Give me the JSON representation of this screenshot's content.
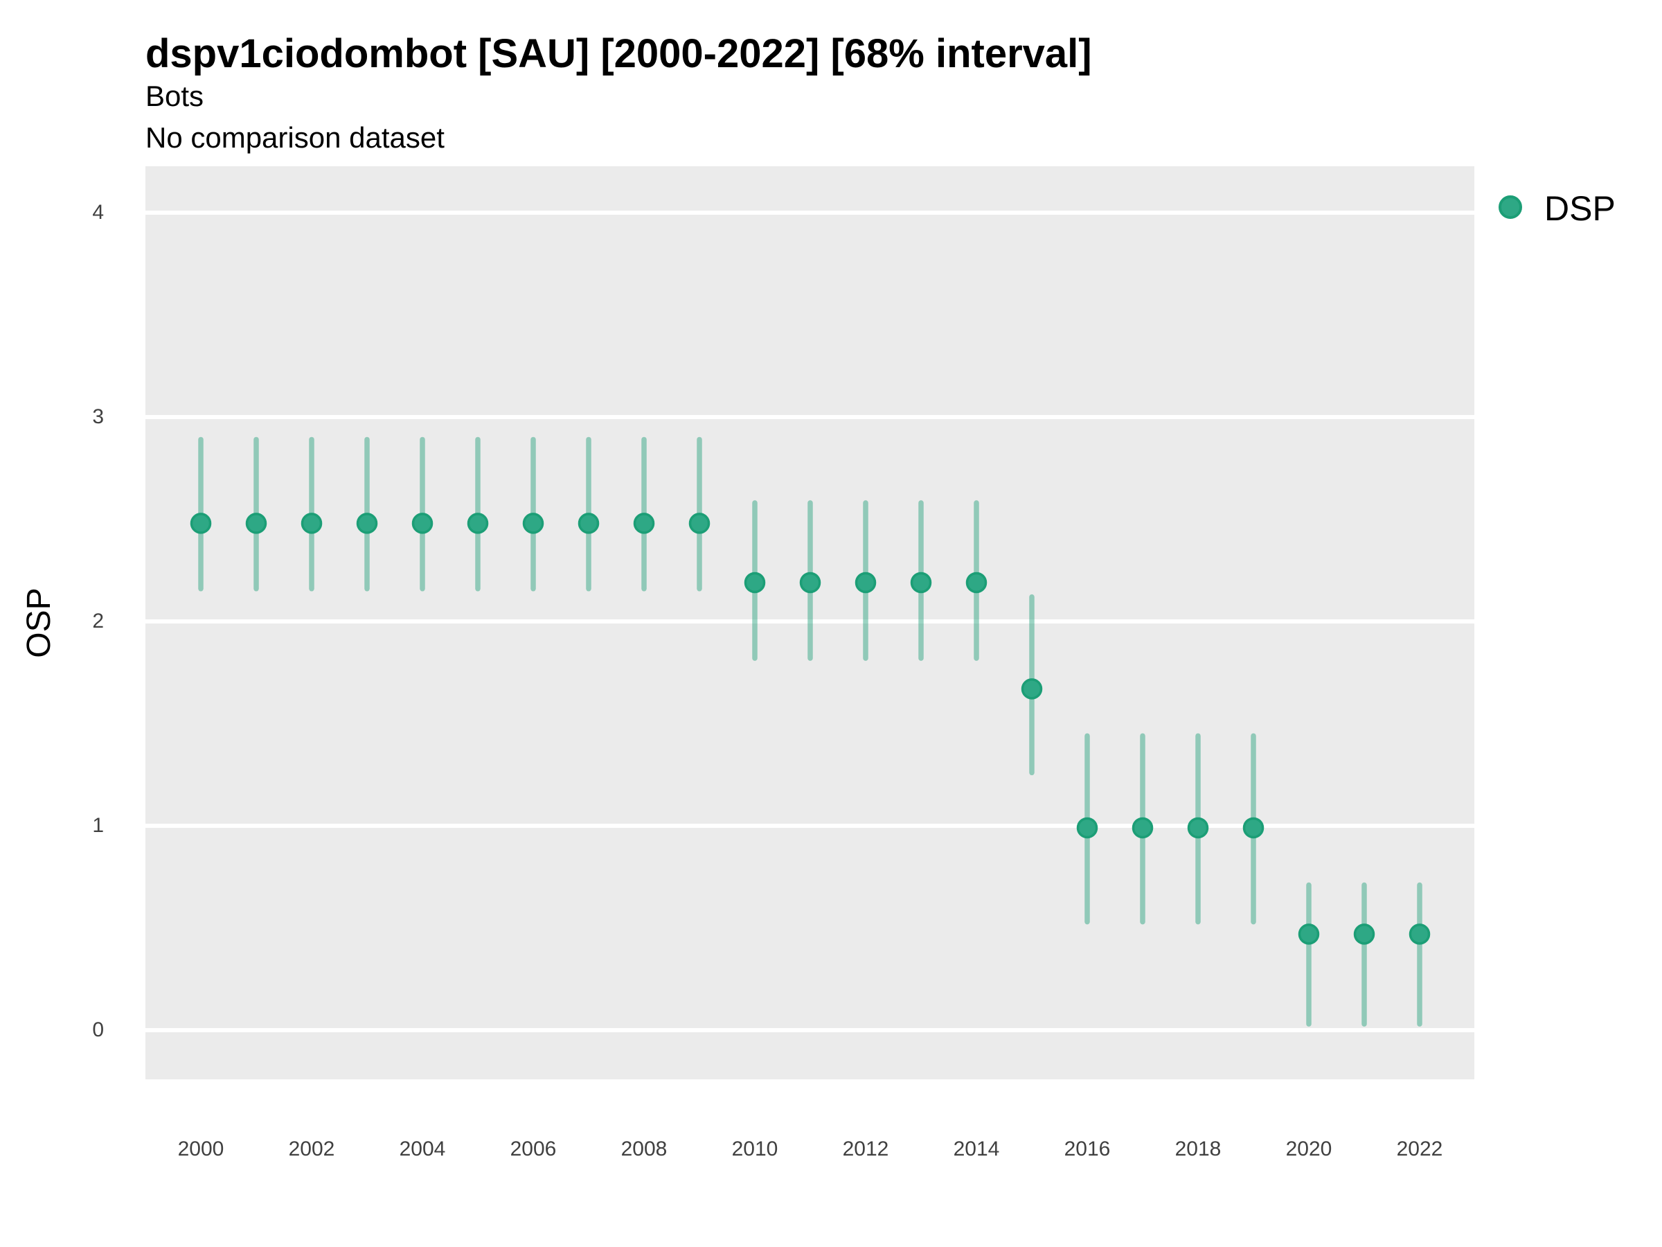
{
  "header": {
    "title": "dspv1ciodombot [SAU] [2000-2022] [68% interval]",
    "subtitle": "Bots",
    "comparison_note": "No comparison dataset"
  },
  "y_axis": {
    "label": "OSP",
    "ticks": [
      "4",
      "3",
      "2",
      "1",
      "0"
    ]
  },
  "x_axis": {
    "ticks": [
      "2000",
      "2002",
      "2004",
      "2006",
      "2008",
      "2010",
      "2012",
      "2014",
      "2016",
      "2018",
      "2020",
      "2022"
    ]
  },
  "legend": {
    "items": [
      {
        "label": "DSP",
        "color": "#2EA885"
      }
    ]
  },
  "colors": {
    "panel_bg": "#EBEBEB",
    "gridline": "#FFFFFF",
    "point_fill": "#2EA885",
    "point_stroke": "#1C9E76",
    "interval": "rgba(27,158,119,0.44)"
  },
  "chart_data": {
    "type": "scatter",
    "title": "dspv1ciodombot [SAU] [2000-2022] [68% interval]",
    "subtitle": "Bots",
    "note": "No comparison dataset",
    "xlabel": "",
    "ylabel": "OSP",
    "interval_level": "68%",
    "ylim": [
      -0.23,
      4.22
    ],
    "xlim": [
      1999,
      2023
    ],
    "grid": "horizontal white major gridlines on gray panel",
    "legend_position": "right-top",
    "x": [
      2000,
      2001,
      2002,
      2003,
      2004,
      2005,
      2006,
      2007,
      2008,
      2009,
      2010,
      2011,
      2012,
      2013,
      2014,
      2015,
      2016,
      2017,
      2018,
      2019,
      2020,
      2021,
      2022
    ],
    "series": [
      {
        "name": "DSP",
        "values": [
          2.48,
          2.48,
          2.48,
          2.48,
          2.48,
          2.48,
          2.48,
          2.48,
          2.48,
          2.48,
          2.19,
          2.19,
          2.19,
          2.19,
          2.19,
          1.67,
          0.99,
          0.99,
          0.99,
          0.99,
          0.47,
          0.47,
          0.47
        ],
        "lower_68": [
          2.16,
          2.16,
          2.16,
          2.16,
          2.16,
          2.16,
          2.16,
          2.16,
          2.16,
          2.16,
          1.82,
          1.82,
          1.82,
          1.82,
          1.82,
          1.26,
          0.53,
          0.53,
          0.53,
          0.53,
          0.03,
          0.03,
          0.03
        ],
        "upper_68": [
          2.89,
          2.89,
          2.89,
          2.89,
          2.89,
          2.89,
          2.89,
          2.89,
          2.89,
          2.89,
          2.58,
          2.58,
          2.58,
          2.58,
          2.58,
          2.12,
          1.44,
          1.44,
          1.44,
          1.44,
          0.71,
          0.71,
          0.71
        ]
      }
    ]
  }
}
